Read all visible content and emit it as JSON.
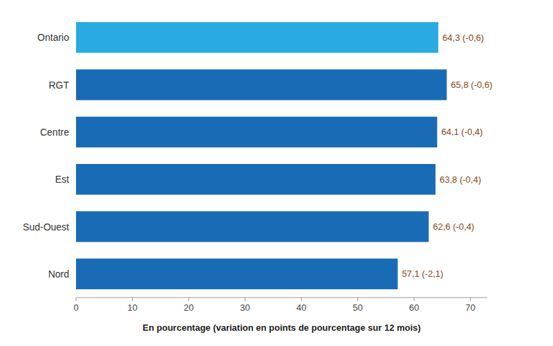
{
  "chart_data": {
    "type": "bar",
    "orientation": "horizontal",
    "categories": [
      "Ontario",
      "RGT",
      "Centre",
      "Est",
      "Sud-Ouest",
      "Nord"
    ],
    "values": [
      64.3,
      65.8,
      64.1,
      63.8,
      62.6,
      57.1
    ],
    "value_labels": [
      "64,3 (-0,6)",
      "65,8 (-0,6)",
      "64,1 (-0,4)",
      "63,8 (-0,4)",
      "62,6 (-0,4)",
      "57,1 (-2,1)"
    ],
    "data_labels": true,
    "colors": [
      "#29ABE2",
      "#1A6BB5",
      "#1A6BB5",
      "#1A6BB5",
      "#1A6BB5",
      "#1A6BB5"
    ],
    "x_label": "En pourcentage (variation en points de pourcentage sur 12 mois)",
    "xlim": [
      0,
      73
    ],
    "xticks": [
      0,
      10,
      20,
      30,
      40,
      50,
      60,
      70
    ],
    "grid": false
  }
}
